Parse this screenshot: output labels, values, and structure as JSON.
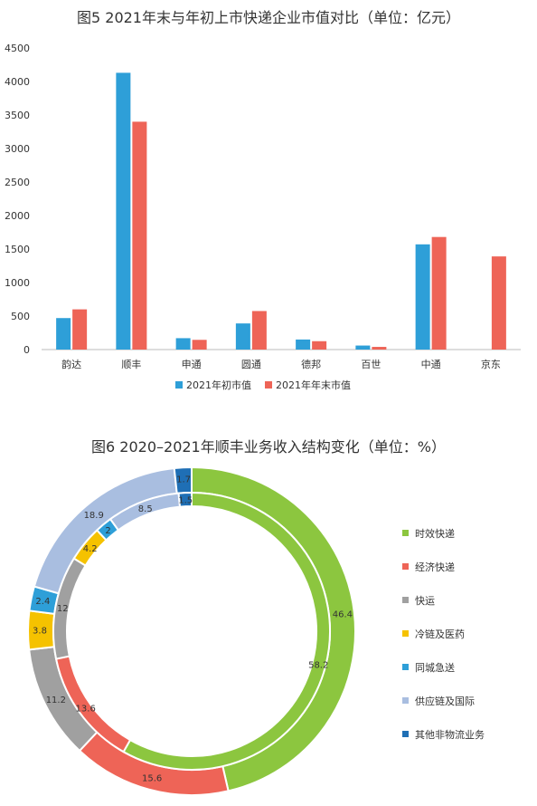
{
  "chart_data": [
    {
      "type": "bar",
      "title": "图5 2021年末与年初上市快递企业市值对比（单位：亿元）",
      "categories": [
        "韵达",
        "顺丰",
        "申通",
        "圆通",
        "德邦",
        "百世",
        "中通",
        "京东"
      ],
      "series": [
        {
          "name": "2021年初市值",
          "values": [
            470,
            4130,
            170,
            390,
            150,
            60,
            1570,
            null
          ],
          "color": "#2E9FD8"
        },
        {
          "name": "2021年年末市值",
          "values": [
            600,
            3400,
            145,
            575,
            125,
            40,
            1680,
            1390
          ],
          "color": "#EE6457"
        }
      ],
      "yticks": [
        0,
        500,
        1000,
        1500,
        2000,
        2500,
        3000,
        3500,
        4000,
        4500
      ],
      "ylim": [
        0,
        4500
      ],
      "legend_position": "bottom",
      "grid": false
    },
    {
      "type": "pie",
      "title": "图6 2020–2021年顺丰业务收入结构变化（单位：%）",
      "categories": [
        "时效快递",
        "经济快递",
        "快运",
        "冷链及医药",
        "同城急送",
        "供应链及国际",
        "其他非物流业务"
      ],
      "colors": [
        "#8CC63F",
        "#EE6457",
        "#A0A0A0",
        "#F5C200",
        "#2E9FD8",
        "#A9BEE0",
        "#1F6FB5"
      ],
      "series": [
        {
          "ring": "outer",
          "values": [
            46.4,
            15.6,
            11.2,
            3.8,
            2.4,
            18.9,
            1.7
          ]
        },
        {
          "ring": "inner",
          "values": [
            58.2,
            13.6,
            12,
            4.2,
            2,
            8.5,
            1.5
          ]
        }
      ],
      "legend_position": "right"
    }
  ]
}
